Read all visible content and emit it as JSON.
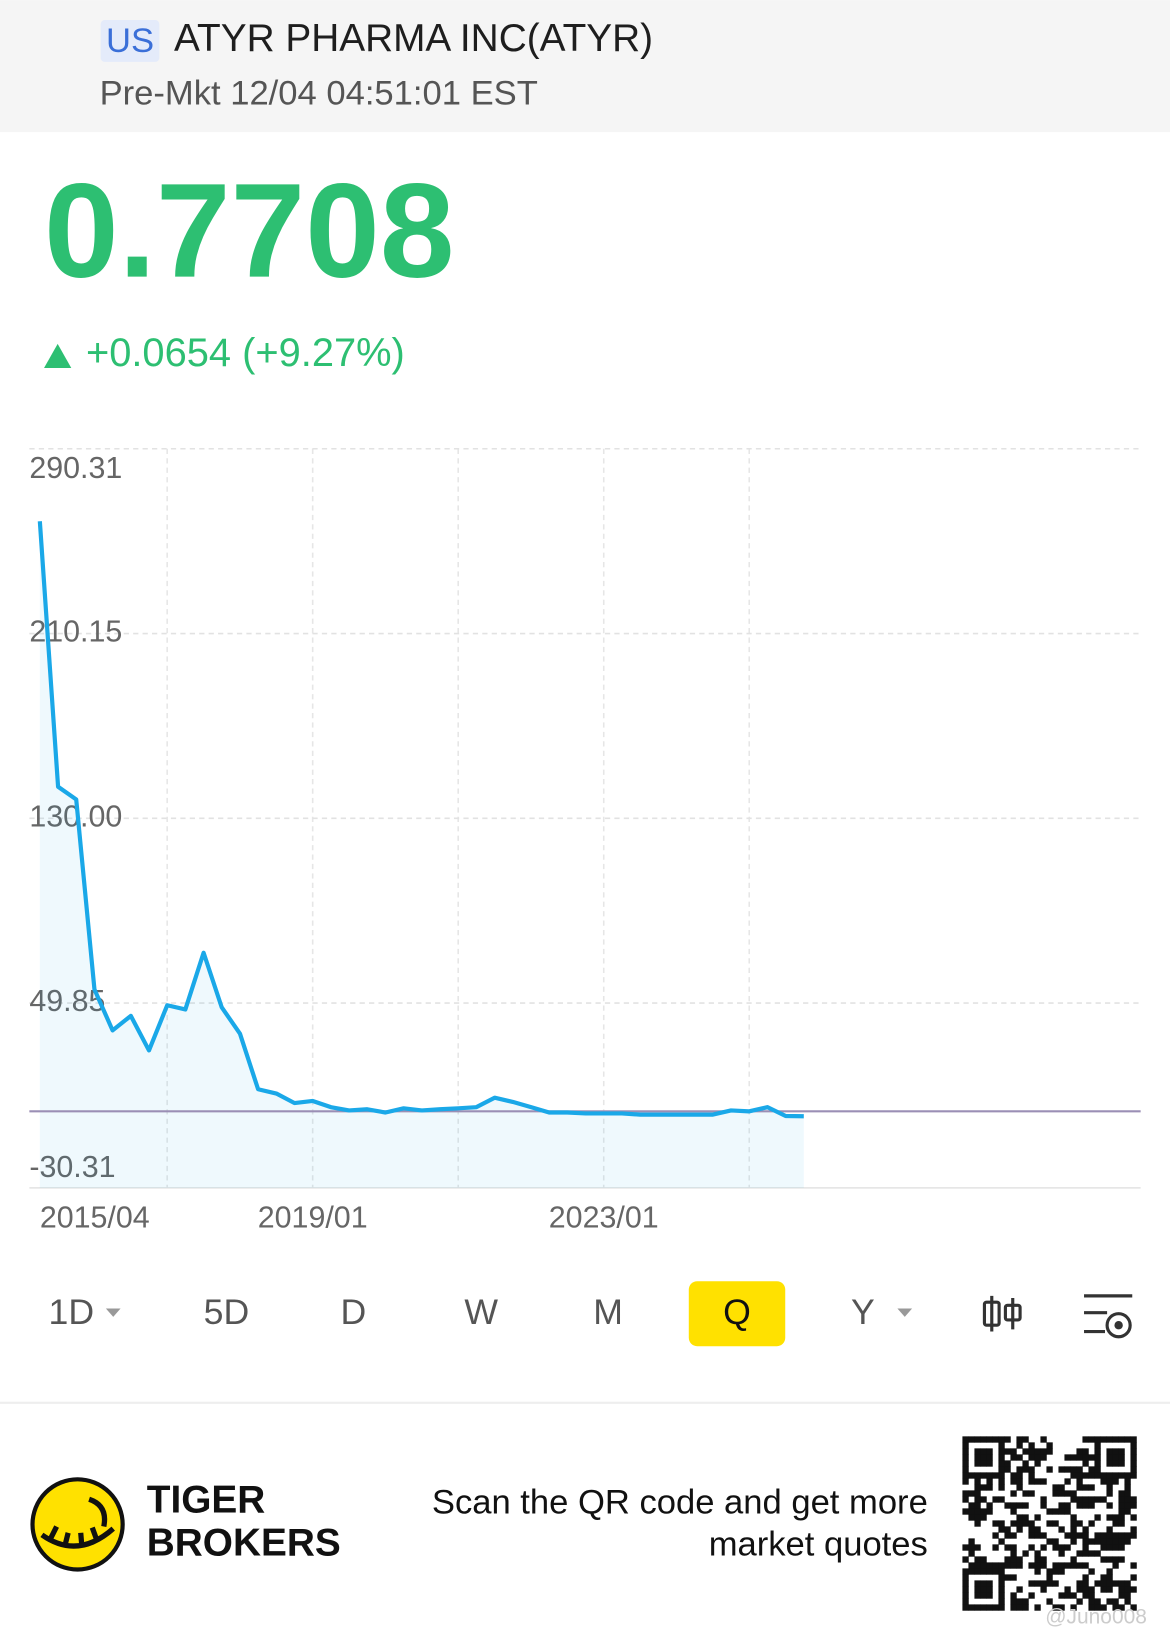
{
  "header": {
    "market": "US",
    "title": "ATYR PHARMA INC(ATYR)",
    "session": "Pre-Mkt 12/04 04:51:01 EST"
  },
  "quote": {
    "price": "0.7708",
    "change": "+0.0654 (+9.27%)",
    "color": "#2dbf72"
  },
  "chart_data": {
    "type": "line",
    "categories": [
      "2015/04",
      null,
      null,
      null,
      null,
      null,
      null,
      null,
      null,
      null,
      null,
      null,
      null,
      null,
      null,
      "2019/01",
      null,
      null,
      null,
      null,
      null,
      null,
      null,
      null,
      null,
      null,
      null,
      null,
      null,
      null,
      null,
      "2023/01",
      null,
      null,
      null,
      null,
      null,
      null,
      null,
      null,
      null,
      null,
      null
    ],
    "values": [
      258.9,
      143.7,
      138.2,
      55.8,
      38.0,
      44.3,
      29.3,
      48.9,
      47.1,
      71.7,
      48.0,
      36.6,
      12.5,
      10.6,
      6.5,
      7.4,
      4.7,
      3.3,
      3.8,
      2.4,
      4.2,
      3.3,
      3.8,
      4.2,
      4.7,
      8.8,
      7.0,
      4.7,
      2.4,
      2.4,
      2.0,
      2.0,
      2.0,
      1.5,
      1.5,
      1.5,
      1.5,
      1.5,
      3.3,
      2.9,
      4.7,
      0.9,
      0.77
    ],
    "color": "#1aa8e8",
    "ylim": [
      -30.31,
      290.31
    ],
    "yticks": [
      290.31,
      210.15,
      {
        "value": 130,
        "label": "130.00"
      },
      49.85,
      -30.31
    ],
    "reference_line": 2.9,
    "reference_color": "#9b8fb5",
    "grid": true
  },
  "tabs": [
    "1D",
    "5D",
    "D",
    "W",
    "M",
    "Q",
    "Y"
  ],
  "active_tab": 5,
  "footer": {
    "brand": [
      "TIGER",
      "BROKERS"
    ],
    "message": [
      "Scan the QR code and get more",
      "market quotes"
    ],
    "watermark": "@Juno008"
  }
}
